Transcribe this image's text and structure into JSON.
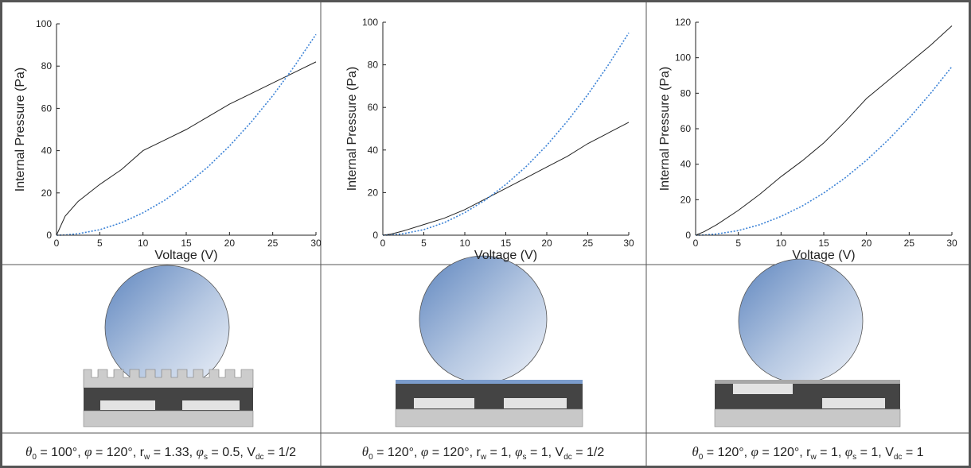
{
  "chart_data": [
    {
      "type": "line",
      "xlabel": "Voltage (V)",
      "ylabel": "Internal Pressure (Pa)",
      "x": [
        0,
        1,
        2.5,
        5,
        7.5,
        10,
        12.5,
        15,
        17.5,
        20,
        22.5,
        25,
        27.5,
        30
      ],
      "series": [
        {
          "color": "#222222",
          "style": "solid",
          "values": [
            0,
            9,
            16,
            24,
            31,
            40,
            45,
            50,
            56,
            62,
            67,
            72,
            77,
            82
          ]
        },
        {
          "color": "#3b82d6",
          "style": "dotted",
          "values": [
            0,
            0.1,
            0.7,
            2.6,
            5.9,
            10.6,
            16.5,
            23.8,
            32.3,
            42.2,
            53.5,
            66,
            79.9,
            95
          ]
        }
      ],
      "xlim": [
        0,
        30
      ],
      "xticks": [
        0,
        5,
        10,
        15,
        20,
        25,
        30
      ],
      "ylim": [
        0,
        100
      ],
      "yticks": [
        0,
        20,
        40,
        60,
        80,
        100
      ],
      "caption": [
        "θ",
        "0",
        " = 100°, ",
        "φ",
        " = 120°, r",
        "w",
        " = 1.33, ",
        "φ",
        "s",
        " = 0.5, V",
        "dc",
        " = 1/2"
      ]
    },
    {
      "type": "line",
      "xlabel": "Voltage (V)",
      "ylabel": "Internal Pressure (Pa)",
      "x": [
        0,
        1,
        2.5,
        5,
        7.5,
        10,
        12.5,
        15,
        17.5,
        20,
        22.5,
        25,
        27.5,
        30
      ],
      "series": [
        {
          "color": "#222222",
          "style": "solid",
          "values": [
            0,
            0.5,
            2,
            5,
            8,
            12,
            17,
            22,
            27,
            32,
            37,
            43,
            48,
            53
          ]
        },
        {
          "color": "#3b82d6",
          "style": "dotted",
          "values": [
            0,
            0.1,
            0.7,
            2.6,
            5.9,
            10.6,
            16.5,
            23.8,
            32.3,
            42.2,
            53.5,
            66,
            79.9,
            95
          ]
        }
      ],
      "xlim": [
        0,
        30
      ],
      "xticks": [
        0,
        5,
        10,
        15,
        20,
        25,
        30
      ],
      "ylim": [
        0,
        100
      ],
      "yticks": [
        0,
        20,
        40,
        60,
        80,
        100
      ],
      "caption": [
        "θ",
        "0",
        " = 120°, ",
        "φ",
        "  = 120°, r",
        "w",
        " = 1, ",
        "φ",
        "s",
        " = 1, V",
        "dc",
        " = 1/2"
      ]
    },
    {
      "type": "line",
      "xlabel": "Voltage (V)",
      "ylabel": "Internal Pressure (Pa)",
      "x": [
        0,
        1,
        2.5,
        5,
        7.5,
        10,
        12.5,
        15,
        17.5,
        20,
        22.5,
        25,
        27.5,
        30
      ],
      "series": [
        {
          "color": "#222222",
          "style": "solid",
          "values": [
            0,
            2,
            6,
            14,
            23,
            33,
            42,
            52,
            64,
            77,
            87,
            97,
            107,
            118
          ]
        },
        {
          "color": "#3b82d6",
          "style": "dotted",
          "values": [
            0,
            0.1,
            0.7,
            2.6,
            5.9,
            10.6,
            16.5,
            23.8,
            32.3,
            42.2,
            53.5,
            66,
            79.9,
            95
          ]
        }
      ],
      "xlim": [
        0,
        30
      ],
      "xticks": [
        0,
        5,
        10,
        15,
        20,
        25,
        30
      ],
      "ylim": [
        0,
        120
      ],
      "yticks": [
        0,
        20,
        40,
        60,
        80,
        100,
        120
      ],
      "caption": [
        "θ",
        "0",
        " = 120°, ",
        "φ",
        " = 120°, r",
        "w",
        " = 1, ",
        "φ",
        "s",
        " = 1, V",
        "dc",
        " = 1"
      ]
    }
  ]
}
